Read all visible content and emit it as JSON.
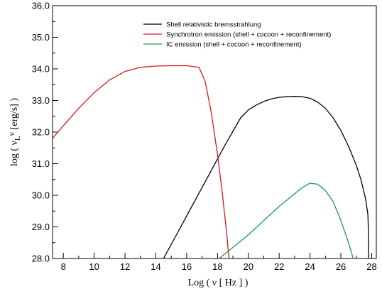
{
  "chart_data": {
    "type": "line",
    "title": "",
    "xlabel": "Log ( ν [ Hz ] )",
    "ylabel": "log ( ν L ν [erg/s] )",
    "ylabel_parts": {
      "pre": "log ( ",
      "nu": "ν",
      "L": "L",
      "sub": "ν",
      "post": " [erg/s] )"
    },
    "xlim": [
      7.3,
      28.3
    ],
    "ylim": [
      28.0,
      36.0
    ],
    "x_ticks": [
      8,
      10,
      12,
      14,
      16,
      18,
      20,
      22,
      24,
      26,
      28
    ],
    "x_tick_labels": [
      "8",
      "10",
      "12",
      "14",
      "16",
      "18",
      "20",
      "22",
      "24",
      "26",
      "28"
    ],
    "y_ticks": [
      28,
      29,
      30,
      31,
      32,
      33,
      34,
      35,
      36
    ],
    "y_tick_labels": [
      "28.0",
      "29.0",
      "30.0",
      "31.0",
      "32.0",
      "33.0",
      "34.0",
      "35.0",
      "36.0"
    ],
    "grid": false,
    "legend_position": "top-right",
    "series": [
      {
        "name": "Shell relativistic bremsstrahlung",
        "color": "#000000",
        "x": [
          14.5,
          15.5,
          16.5,
          17.5,
          18.5,
          19.5,
          20.0,
          20.5,
          21.0,
          21.5,
          22.0,
          22.5,
          23.0,
          23.5,
          24.0,
          24.5,
          25.0,
          25.5,
          26.0,
          26.5,
          27.0,
          27.3,
          27.6,
          27.75,
          27.8,
          27.8
        ],
        "y": [
          28.0,
          28.9,
          29.8,
          30.7,
          31.6,
          32.45,
          32.7,
          32.85,
          32.97,
          33.05,
          33.1,
          33.12,
          33.13,
          33.12,
          33.07,
          32.95,
          32.75,
          32.45,
          32.05,
          31.55,
          30.95,
          30.5,
          29.9,
          29.4,
          28.7,
          28.0
        ]
      },
      {
        "name": "Synchrotron emission (shell + cocoon + reconfinement)",
        "color": "#d7191c",
        "x": [
          7.3,
          8.0,
          9.0,
          10.0,
          11.0,
          12.0,
          13.0,
          14.0,
          15.0,
          16.0,
          16.8,
          17.2,
          17.6,
          18.0,
          18.3,
          18.55,
          18.75
        ],
        "y": [
          31.8,
          32.2,
          32.75,
          33.25,
          33.65,
          33.92,
          34.05,
          34.09,
          34.1,
          34.1,
          34.05,
          33.6,
          32.6,
          31.3,
          30.1,
          29.0,
          28.0
        ]
      },
      {
        "name": "IC emission (shell + cocoon + reconfinement)",
        "color": "#1a9850",
        "x": [
          18.1,
          19.0,
          20.0,
          21.0,
          22.0,
          23.0,
          23.5,
          24.0,
          24.5,
          25.0,
          25.5,
          26.0,
          26.5,
          26.8
        ],
        "y": [
          28.0,
          28.35,
          28.75,
          29.2,
          29.65,
          30.05,
          30.25,
          30.38,
          30.35,
          30.15,
          29.8,
          29.2,
          28.5,
          28.0
        ]
      }
    ]
  }
}
